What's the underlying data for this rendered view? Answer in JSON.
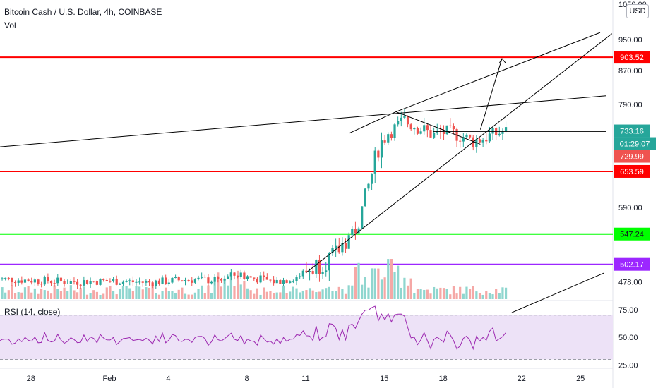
{
  "header": {
    "symbol_title": "Bitcoin Cash / U.S. Dollar, 4h, COINBASE",
    "volume_label": "Vol",
    "rsi_label": "RSI (14, close)",
    "currency_button": "USD"
  },
  "colors": {
    "up": "#26a69a",
    "down": "#ef5350",
    "up_vol": "#8fd6cf",
    "down_vol": "#f5a8a6",
    "resistance": "#ff0000",
    "support_green": "#00ff00",
    "support_purple": "#9c27ff",
    "rsi_line": "#9c27b0",
    "rsi_band": "#ede2f7",
    "trendline": "#000000",
    "countdown_bg": "#26a69a",
    "last_price_bg": "#ef5350"
  },
  "chart_data": {
    "type": "candlestick",
    "price_axis": {
      "range": [
        455,
        1050
      ],
      "ticks": [
        "1050.00",
        "950.00",
        "870.00",
        "790.00",
        "590.00",
        "478.00"
      ]
    },
    "rsi_axis": {
      "range": [
        22,
        82
      ],
      "ticks": [
        "75.00",
        "50.00",
        "25.00"
      ],
      "band": [
        30,
        70
      ]
    },
    "time_axis": {
      "labels": [
        {
          "day": -4,
          "text": "28"
        },
        {
          "day": 0,
          "text": "Feb"
        },
        {
          "day": 3,
          "text": "4"
        },
        {
          "day": 7,
          "text": "8"
        },
        {
          "day": 10,
          "text": "11"
        },
        {
          "day": 14,
          "text": "15"
        },
        {
          "day": 17,
          "text": "18"
        },
        {
          "day": 21,
          "text": "22"
        },
        {
          "day": 24,
          "text": "25"
        }
      ]
    },
    "horizontal_levels": [
      {
        "value": 903.52,
        "label": "903.52",
        "color": "resistance"
      },
      {
        "value": 653.59,
        "label": "653.59",
        "color": "resistance"
      },
      {
        "value": 547.24,
        "label": "547.24",
        "color": "support_green"
      },
      {
        "value": 502.17,
        "label": "502.17",
        "color": "support_purple"
      }
    ],
    "price_tags": {
      "current": "733.16",
      "countdown": "01:29:07",
      "last": "729.99"
    },
    "trendlines": [
      {
        "from": [
          -5.8,
          700
        ],
        "to": [
          25.3,
          810
        ]
      },
      {
        "from": [
          12.2,
          728
        ],
        "to": [
          14.6,
          774
        ]
      },
      {
        "from": [
          14.6,
          774
        ],
        "to": [
          25,
          969
        ]
      },
      {
        "from": [
          10,
          490
        ],
        "to": [
          25.6,
          966
        ]
      },
      {
        "from": [
          14.6,
          774
        ],
        "to": [
          18.9,
          706
        ]
      },
      {
        "from": [
          16.5,
          732
        ],
        "to": [
          25.3,
          732
        ]
      },
      {
        "from": [
          18.9,
          736
        ],
        "to": [
          20,
          900
        ]
      },
      {
        "from": [
          20.5,
          438
        ],
        "to": [
          25.2,
          490
        ]
      }
    ]
  }
}
